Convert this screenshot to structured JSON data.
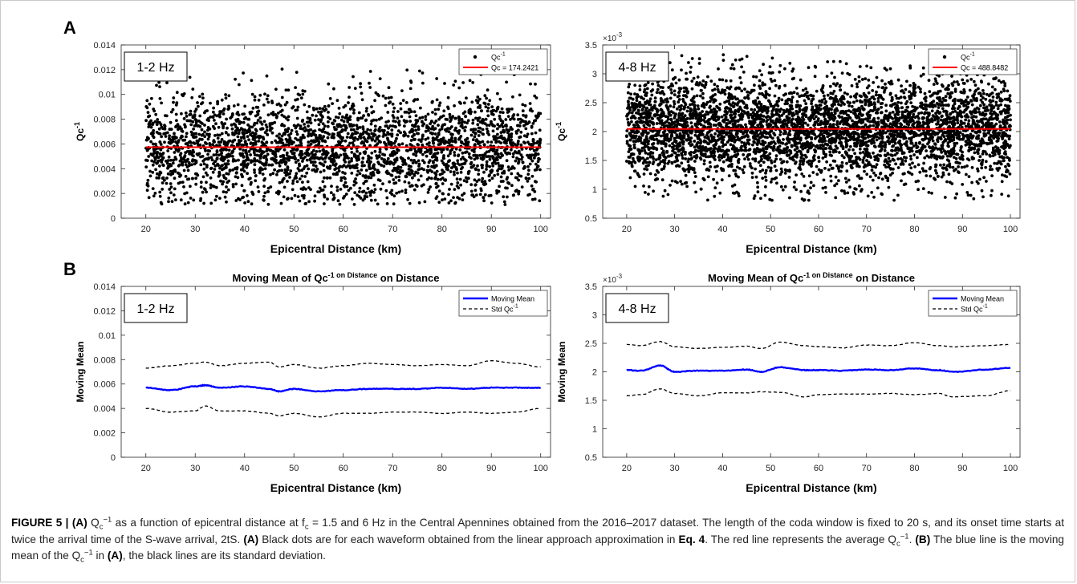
{
  "panel_labels": {
    "a": "A",
    "b": "B"
  },
  "caption": {
    "fig_label": "FIGURE 5 | ",
    "p1": "(A)",
    "p2": " Q",
    "p3": "c",
    "p4": "−1",
    "p5": " as a function of epicentral distance at f",
    "p6": "c",
    "p7": " = 1.5 and 6 Hz in the Central Apennines obtained from the 2016–2017 dataset. The length of the coda window is fixed to 20 s, and its onset time starts at twice the arrival time of the S-wave arrival, 2tS. ",
    "p8": "(A)",
    "p9": " Black dots are for each waveform obtained from the linear approach approximation in ",
    "p10": "Eq. 4",
    "p11": ". The red line represents the average Q",
    "p12": "c",
    "p13": "−1",
    "p14": ". ",
    "p15": "(B)",
    "p16": " The blue line is the moving mean of the Q",
    "p17": "c",
    "p18": "−1",
    "p19": " in ",
    "p20": "(A)",
    "p21": ", the black lines are its standard deviation."
  },
  "colors": {
    "dots": "#000000",
    "qc_line": "#ff0000",
    "moving_mean": "#0000ff",
    "std": "#000000",
    "axes": "#262626",
    "grid": "#000000"
  },
  "chart_data": [
    {
      "id": "A-1-2Hz",
      "type": "scatter",
      "title": "",
      "xlabel": "Epicentral Distance (km)",
      "ylabel": "Qc-1",
      "xlim": [
        15,
        102
      ],
      "ylim": [
        0,
        0.014
      ],
      "xticks": [
        20,
        30,
        40,
        50,
        60,
        70,
        80,
        90,
        100
      ],
      "yticks": [
        0,
        0.002,
        0.004,
        0.006,
        0.008,
        0.01,
        0.012,
        0.014
      ],
      "yticklabels": [
        "0",
        "0.002",
        "0.004",
        "0.006",
        "0.008",
        "0.01",
        "0.012",
        "0.014"
      ],
      "exponent_label": "",
      "frequency_label": "1-2 Hz",
      "legend": {
        "position": "top-right",
        "entries": [
          "Qc-1",
          "Qc = 174.2421"
        ]
      },
      "series": [
        {
          "name": "Qc-1",
          "kind": "scatter",
          "x_range": [
            20,
            100
          ],
          "center": 0.0057,
          "spread": 0.0022,
          "min": 0.0011,
          "max": 0.0121,
          "count": 3000
        },
        {
          "name": "Qc = 174.2421",
          "kind": "hline",
          "y": 0.00574
        }
      ]
    },
    {
      "id": "A-4-8Hz",
      "type": "scatter",
      "title": "",
      "xlabel": "Epicentral Distance (km)",
      "ylabel": "Qc-1",
      "xlim": [
        15,
        102
      ],
      "ylim": [
        0.5,
        3.5
      ],
      "xticks": [
        20,
        30,
        40,
        50,
        60,
        70,
        80,
        90,
        100
      ],
      "yticks": [
        0.5,
        1,
        1.5,
        2,
        2.5,
        3,
        3.5
      ],
      "yticklabels": [
        "0.5",
        "1",
        "1.5",
        "2",
        "2.5",
        "3",
        "3.5"
      ],
      "exponent_label": "×10",
      "exponent_power": "-3",
      "frequency_label": "4-8 Hz",
      "legend": {
        "position": "top-right",
        "entries": [
          "Qc-1",
          "Qc = 488.8482"
        ]
      },
      "series": [
        {
          "name": "Qc-1",
          "kind": "scatter",
          "x_range": [
            20,
            100
          ],
          "center": 2.04,
          "spread": 0.45,
          "min": 0.8,
          "max": 3.35,
          "count": 4500
        },
        {
          "name": "Qc = 488.8482",
          "kind": "hline",
          "y": 2.045
        }
      ]
    },
    {
      "id": "B-1-2Hz",
      "type": "line",
      "title": "Moving Mean of Qc-1 on Distance",
      "xlabel": "Epicentral Distance (km)",
      "ylabel": "Moving Mean",
      "xlim": [
        15,
        102
      ],
      "ylim": [
        0,
        0.014
      ],
      "xticks": [
        20,
        30,
        40,
        50,
        60,
        70,
        80,
        90,
        100
      ],
      "yticks": [
        0,
        0.002,
        0.004,
        0.006,
        0.008,
        0.01,
        0.012,
        0.014
      ],
      "yticklabels": [
        "0",
        "0.002",
        "0.004",
        "0.006",
        "0.008",
        "0.01",
        "0.012",
        "0.014"
      ],
      "exponent_label": "",
      "frequency_label": "1-2 Hz",
      "legend": {
        "position": "top-right",
        "entries": [
          "Moving Mean",
          "Std Qc-1"
        ]
      },
      "x": [
        20,
        25,
        30,
        32,
        35,
        40,
        45,
        47,
        50,
        55,
        60,
        65,
        70,
        75,
        80,
        85,
        90,
        95,
        100
      ],
      "series": [
        {
          "name": "Moving Mean",
          "kind": "line",
          "values": [
            0.0057,
            0.0055,
            0.0058,
            0.0059,
            0.0057,
            0.0058,
            0.0056,
            0.0054,
            0.0056,
            0.0054,
            0.0055,
            0.0056,
            0.0056,
            0.0056,
            0.0057,
            0.0056,
            0.0057,
            0.0057,
            0.0057
          ]
        },
        {
          "name": "Std Qc-1",
          "kind": "dashed",
          "values": [
            0.0073,
            0.0075,
            0.0077,
            0.0078,
            0.0075,
            0.0077,
            0.0078,
            0.0074,
            0.0076,
            0.0073,
            0.0075,
            0.0077,
            0.0076,
            0.0075,
            0.0076,
            0.0075,
            0.0079,
            0.0077,
            0.0074
          ]
        },
        {
          "name": "",
          "kind": "dashed",
          "values": [
            0.004,
            0.0037,
            0.0038,
            0.0042,
            0.0038,
            0.0038,
            0.0036,
            0.0034,
            0.0036,
            0.0033,
            0.0036,
            0.0036,
            0.0037,
            0.0037,
            0.0036,
            0.0037,
            0.0036,
            0.0037,
            0.004
          ]
        }
      ]
    },
    {
      "id": "B-4-8Hz",
      "type": "line",
      "title": "Moving Mean of Qc-1 on Distance",
      "xlabel": "Epicentral Distance (km)",
      "ylabel": "Moving Mean",
      "xlim": [
        15,
        102
      ],
      "ylim": [
        0.5,
        3.5
      ],
      "xticks": [
        20,
        30,
        40,
        50,
        60,
        70,
        80,
        90,
        100
      ],
      "yticks": [
        0.5,
        1,
        1.5,
        2,
        2.5,
        3,
        3.5
      ],
      "yticklabels": [
        "0.5",
        "1",
        "1.5",
        "2",
        "2.5",
        "3",
        "3.5"
      ],
      "exponent_label": "×10",
      "exponent_power": "-3",
      "frequency_label": "4-8 Hz",
      "legend": {
        "position": "top-right",
        "entries": [
          "Moving Mean",
          "Std Qc-1"
        ]
      },
      "x": [
        20,
        23,
        27,
        30,
        35,
        40,
        45,
        48,
        52,
        57,
        60,
        65,
        70,
        75,
        80,
        85,
        88,
        95,
        100
      ],
      "series": [
        {
          "name": "Moving Mean",
          "kind": "line",
          "values": [
            2.03,
            2.02,
            2.11,
            2.0,
            2.02,
            2.02,
            2.04,
            2.0,
            2.08,
            2.03,
            2.03,
            2.02,
            2.04,
            2.03,
            2.06,
            2.03,
            2.0,
            2.04,
            2.07
          ]
        },
        {
          "name": "Std Qc-1",
          "kind": "dashed",
          "values": [
            2.48,
            2.46,
            2.53,
            2.44,
            2.41,
            2.43,
            2.45,
            2.41,
            2.52,
            2.46,
            2.44,
            2.42,
            2.47,
            2.46,
            2.51,
            2.46,
            2.44,
            2.46,
            2.48
          ]
        },
        {
          "name": "",
          "kind": "dashed",
          "values": [
            1.58,
            1.6,
            1.7,
            1.62,
            1.58,
            1.63,
            1.63,
            1.65,
            1.64,
            1.56,
            1.6,
            1.61,
            1.61,
            1.62,
            1.6,
            1.62,
            1.56,
            1.58,
            1.67
          ]
        }
      ]
    }
  ]
}
